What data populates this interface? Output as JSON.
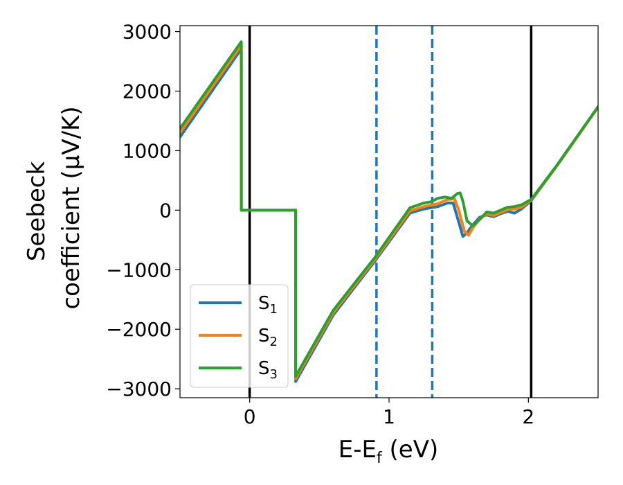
{
  "chart_data": {
    "type": "line",
    "title": "",
    "xlabel": "E-E",
    "xlabel_sub": "f",
    "xlabel_unit": " (eV)",
    "ylabel_line1": "Seebeck",
    "ylabel_line2": "coefficient  (μV/K)",
    "xlim": [
      -0.5,
      2.5
    ],
    "ylim": [
      -3150,
      3100
    ],
    "xticks": [
      0,
      1,
      2
    ],
    "xtick_labels": [
      "0",
      "1",
      "2"
    ],
    "yticks": [
      -3000,
      -2000,
      -1000,
      0,
      1000,
      2000,
      3000
    ],
    "ytick_labels": [
      "−3000",
      "−2000",
      "−1000",
      "0",
      "1000",
      "2000",
      "3000"
    ],
    "grid": false,
    "legend_position": "lower-left",
    "vlines": [
      {
        "x": 0.0,
        "style": "solid",
        "color": "#000000"
      },
      {
        "x": 2.02,
        "style": "solid",
        "color": "#000000"
      },
      {
        "x": 0.91,
        "style": "dashed",
        "color": "#1f77b4"
      },
      {
        "x": 1.31,
        "style": "dashed",
        "color": "#1f77b4"
      }
    ],
    "series": [
      {
        "name": "S",
        "sub": "1",
        "color": "#1f77b4",
        "x": [
          -0.5,
          -0.06,
          -0.06,
          0.33,
          0.33,
          0.6,
          0.9,
          1.15,
          1.25,
          1.35,
          1.42,
          1.46,
          1.5,
          1.53,
          1.56,
          1.6,
          1.65,
          1.7,
          1.75,
          1.8,
          1.85,
          1.9,
          1.95,
          2.02,
          2.2,
          2.5
        ],
        "y": [
          1230,
          2710,
          0,
          0,
          -2880,
          -1760,
          -850,
          -50,
          20,
          60,
          120,
          120,
          -200,
          -440,
          -380,
          -250,
          -120,
          -80,
          -110,
          -60,
          -20,
          -50,
          20,
          160,
          730,
          1730
        ]
      },
      {
        "name": "S",
        "sub": "2",
        "color": "#ff7f0e",
        "x": [
          -0.5,
          -0.06,
          -0.06,
          0.33,
          0.33,
          0.6,
          0.9,
          1.15,
          1.25,
          1.35,
          1.42,
          1.47,
          1.5,
          1.54,
          1.57,
          1.6,
          1.65,
          1.7,
          1.75,
          1.8,
          1.85,
          1.9,
          1.95,
          2.02,
          2.2,
          2.5
        ],
        "y": [
          1300,
          2770,
          0,
          0,
          -2830,
          -1720,
          -820,
          -10,
          60,
          110,
          180,
          190,
          0,
          -350,
          -420,
          -300,
          -150,
          -60,
          -90,
          -40,
          10,
          20,
          50,
          170,
          730,
          1730
        ]
      },
      {
        "name": "S",
        "sub": "3",
        "color": "#2ca02c",
        "x": [
          -0.5,
          -0.06,
          -0.06,
          0.33,
          0.33,
          0.6,
          0.9,
          1.15,
          1.25,
          1.3,
          1.35,
          1.4,
          1.45,
          1.49,
          1.51,
          1.53,
          1.56,
          1.6,
          1.65,
          1.7,
          1.75,
          1.8,
          1.85,
          1.9,
          1.95,
          2.02,
          2.2,
          2.5
        ],
        "y": [
          1370,
          2830,
          0,
          0,
          -2790,
          -1680,
          -790,
          40,
          120,
          140,
          200,
          220,
          200,
          280,
          290,
          150,
          -180,
          -260,
          -160,
          -30,
          -50,
          0,
          50,
          60,
          90,
          180,
          740,
          1740
        ]
      }
    ]
  }
}
